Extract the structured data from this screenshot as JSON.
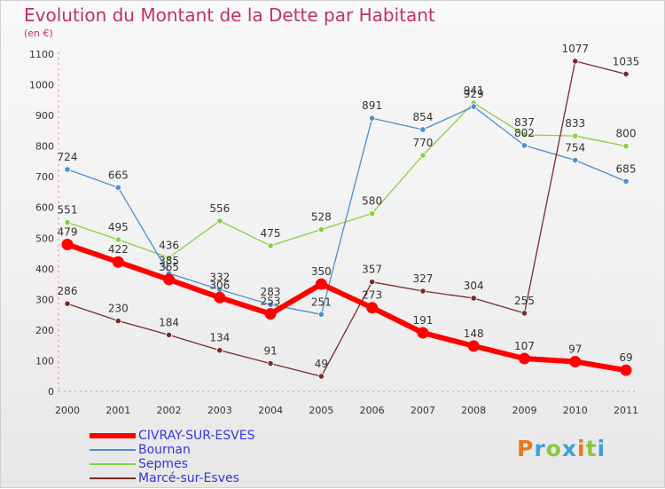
{
  "title": "Evolution du Montant de la Dette par Habitant",
  "unit_label": "(en €)",
  "logo": {
    "text": "Proxiti",
    "colors": [
      "#e87722",
      "#3ba2d8",
      "#8cc63f",
      "#3ba2d8",
      "#e87722",
      "#8cc63f",
      "#3ba2d8"
    ]
  },
  "chart_data": {
    "type": "line",
    "title": "Evolution du Montant de la Dette par Habitant",
    "ylabel": "(en €)",
    "xlabel": "",
    "x": [
      2000,
      2001,
      2002,
      2003,
      2004,
      2005,
      2006,
      2007,
      2008,
      2009,
      2010,
      2011
    ],
    "ylim": [
      0,
      1100
    ],
    "yticks": [
      0,
      100,
      200,
      300,
      400,
      500,
      600,
      700,
      800,
      900,
      1000,
      1100
    ],
    "grid": false,
    "legend_position": "bottom-left",
    "series": [
      {
        "name": "Sepmes",
        "color": "#86d040",
        "width": 1.3,
        "marker": 3.2,
        "values": [
          551,
          495,
          436,
          556,
          475,
          528,
          580,
          770,
          941,
          837,
          833,
          800
        ],
        "labels": [
          "551",
          "495",
          "436",
          "556",
          "475",
          "528",
          "580",
          "770",
          "941",
          "837",
          "833",
          "800"
        ]
      },
      {
        "name": "Bournan",
        "color": "#4a8fd0",
        "width": 1.3,
        "marker": 3.2,
        "values": [
          724,
          665,
          385,
          332,
          283,
          251,
          891,
          854,
          929,
          802,
          754,
          685
        ],
        "labels": [
          "724",
          "665",
          "385",
          "332",
          "283",
          "251",
          "891",
          "854",
          "929",
          "802",
          "754",
          "685"
        ]
      },
      {
        "name": "Marcé-sur-Esves",
        "color": "#7a2a2a",
        "width": 1.3,
        "marker": 3.2,
        "values": [
          286,
          230,
          184,
          134,
          91,
          49,
          357,
          327,
          304,
          255,
          1077,
          1035
        ],
        "labels": [
          "286",
          "230",
          "184",
          "134",
          "91",
          "49",
          "357",
          "327",
          "304",
          "255",
          "1077",
          "1035"
        ]
      },
      {
        "name": "CIVRAY-SUR-ESVES",
        "color": "#ff0000",
        "width": 6,
        "marker": 6.5,
        "values": [
          479,
          422,
          365,
          306,
          253,
          350,
          273,
          191,
          148,
          107,
          97,
          69
        ],
        "labels": [
          "479",
          "422",
          "365",
          "306",
          "253",
          "350",
          "273",
          "191",
          "148",
          "107",
          "97",
          "69"
        ]
      }
    ],
    "legend": [
      "CIVRAY-SUR-ESVES",
      "Bournan",
      "Sepmes",
      "Marcé-sur-Esves"
    ]
  }
}
